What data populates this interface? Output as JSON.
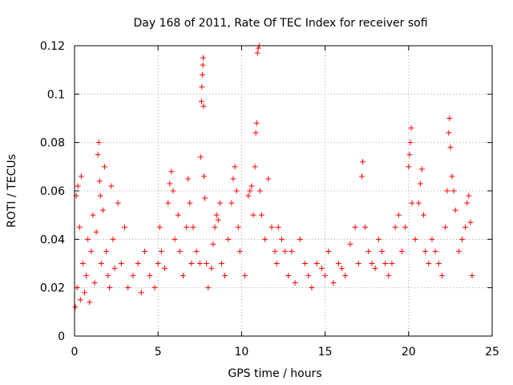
{
  "chart_data": {
    "type": "scatter",
    "title": "Day 168 of 2011, Rate Of TEC Index for receiver sofi",
    "xlabel": "GPS time / hours",
    "ylabel": "ROTI / TECUs",
    "xlim": [
      0,
      25
    ],
    "ylim": [
      0,
      0.12
    ],
    "xticks": [
      0,
      5,
      10,
      15,
      20,
      25
    ],
    "xtick_labels": [
      "0",
      "5",
      "10",
      "15",
      "20",
      "25"
    ],
    "yticks": [
      0,
      0.02,
      0.04,
      0.06,
      0.08,
      0.1,
      0.12
    ],
    "ytick_labels": [
      "0",
      "0.02",
      "0.04",
      "0.06",
      "0.08",
      "0.1",
      "0.12"
    ],
    "grid": true,
    "marker": "plus",
    "color": "#ff0000",
    "series": [
      {
        "name": "ROTI",
        "points": [
          [
            0.05,
            0.012
          ],
          [
            0.1,
            0.058
          ],
          [
            0.15,
            0.02
          ],
          [
            0.2,
            0.062
          ],
          [
            0.3,
            0.045
          ],
          [
            0.35,
            0.015
          ],
          [
            0.4,
            0.066
          ],
          [
            0.5,
            0.03
          ],
          [
            0.6,
            0.018
          ],
          [
            0.7,
            0.025
          ],
          [
            0.8,
            0.04
          ],
          [
            0.9,
            0.014
          ],
          [
            1.0,
            0.035
          ],
          [
            1.1,
            0.05
          ],
          [
            1.2,
            0.022
          ],
          [
            1.3,
            0.043
          ],
          [
            1.4,
            0.075
          ],
          [
            1.45,
            0.08
          ],
          [
            1.5,
            0.064
          ],
          [
            1.55,
            0.058
          ],
          [
            1.6,
            0.03
          ],
          [
            1.7,
            0.052
          ],
          [
            1.8,
            0.07
          ],
          [
            1.9,
            0.035
          ],
          [
            2.0,
            0.025
          ],
          [
            2.1,
            0.02
          ],
          [
            2.2,
            0.062
          ],
          [
            2.3,
            0.04
          ],
          [
            2.4,
            0.028
          ],
          [
            2.6,
            0.055
          ],
          [
            2.8,
            0.03
          ],
          [
            3.0,
            0.045
          ],
          [
            3.2,
            0.02
          ],
          [
            3.5,
            0.025
          ],
          [
            3.8,
            0.03
          ],
          [
            4.0,
            0.018
          ],
          [
            4.2,
            0.035
          ],
          [
            4.5,
            0.025
          ],
          [
            4.8,
            0.02
          ],
          [
            5.0,
            0.03
          ],
          [
            5.1,
            0.045
          ],
          [
            5.2,
            0.035
          ],
          [
            5.4,
            0.028
          ],
          [
            5.6,
            0.055
          ],
          [
            5.7,
            0.063
          ],
          [
            5.8,
            0.068
          ],
          [
            5.9,
            0.06
          ],
          [
            6.0,
            0.04
          ],
          [
            6.2,
            0.05
          ],
          [
            6.3,
            0.035
          ],
          [
            6.5,
            0.025
          ],
          [
            6.7,
            0.045
          ],
          [
            6.8,
            0.065
          ],
          [
            6.9,
            0.055
          ],
          [
            7.0,
            0.03
          ],
          [
            7.1,
            0.045
          ],
          [
            7.3,
            0.035
          ],
          [
            7.5,
            0.03
          ],
          [
            7.55,
            0.074
          ],
          [
            7.6,
            0.097
          ],
          [
            7.62,
            0.103
          ],
          [
            7.65,
            0.108
          ],
          [
            7.68,
            0.112
          ],
          [
            7.7,
            0.115
          ],
          [
            7.72,
            0.095
          ],
          [
            7.75,
            0.066
          ],
          [
            7.8,
            0.057
          ],
          [
            7.9,
            0.03
          ],
          [
            8.0,
            0.02
          ],
          [
            8.2,
            0.028
          ],
          [
            8.3,
            0.038
          ],
          [
            8.4,
            0.045
          ],
          [
            8.5,
            0.05
          ],
          [
            8.6,
            0.048
          ],
          [
            8.7,
            0.055
          ],
          [
            8.8,
            0.03
          ],
          [
            9.0,
            0.025
          ],
          [
            9.2,
            0.04
          ],
          [
            9.4,
            0.055
          ],
          [
            9.5,
            0.065
          ],
          [
            9.6,
            0.07
          ],
          [
            9.7,
            0.06
          ],
          [
            9.8,
            0.045
          ],
          [
            9.9,
            0.035
          ],
          [
            10.2,
            0.025
          ],
          [
            10.4,
            0.058
          ],
          [
            10.5,
            0.06
          ],
          [
            10.6,
            0.062
          ],
          [
            10.7,
            0.05
          ],
          [
            10.8,
            0.07
          ],
          [
            10.85,
            0.084
          ],
          [
            10.9,
            0.088
          ],
          [
            10.95,
            0.117
          ],
          [
            11.0,
            0.119
          ],
          [
            11.05,
            0.12
          ],
          [
            11.1,
            0.06
          ],
          [
            11.2,
            0.05
          ],
          [
            11.4,
            0.04
          ],
          [
            11.6,
            0.065
          ],
          [
            11.8,
            0.045
          ],
          [
            12.0,
            0.035
          ],
          [
            12.1,
            0.03
          ],
          [
            12.2,
            0.045
          ],
          [
            12.4,
            0.04
          ],
          [
            12.6,
            0.035
          ],
          [
            12.8,
            0.025
          ],
          [
            13.0,
            0.035
          ],
          [
            13.2,
            0.022
          ],
          [
            13.5,
            0.04
          ],
          [
            13.8,
            0.03
          ],
          [
            14.0,
            0.025
          ],
          [
            14.2,
            0.02
          ],
          [
            14.5,
            0.03
          ],
          [
            14.8,
            0.028
          ],
          [
            15.0,
            0.025
          ],
          [
            15.2,
            0.035
          ],
          [
            15.5,
            0.022
          ],
          [
            15.8,
            0.03
          ],
          [
            16.0,
            0.028
          ],
          [
            16.2,
            0.025
          ],
          [
            16.5,
            0.038
          ],
          [
            16.8,
            0.045
          ],
          [
            17.0,
            0.03
          ],
          [
            17.2,
            0.066
          ],
          [
            17.25,
            0.072
          ],
          [
            17.4,
            0.045
          ],
          [
            17.6,
            0.035
          ],
          [
            17.8,
            0.03
          ],
          [
            18.0,
            0.028
          ],
          [
            18.2,
            0.04
          ],
          [
            18.4,
            0.035
          ],
          [
            18.6,
            0.03
          ],
          [
            18.8,
            0.025
          ],
          [
            19.0,
            0.03
          ],
          [
            19.2,
            0.045
          ],
          [
            19.4,
            0.05
          ],
          [
            19.6,
            0.035
          ],
          [
            19.8,
            0.045
          ],
          [
            20.0,
            0.07
          ],
          [
            20.05,
            0.075
          ],
          [
            20.1,
            0.08
          ],
          [
            20.15,
            0.086
          ],
          [
            20.2,
            0.055
          ],
          [
            20.4,
            0.04
          ],
          [
            20.6,
            0.055
          ],
          [
            20.7,
            0.063
          ],
          [
            20.8,
            0.069
          ],
          [
            20.9,
            0.05
          ],
          [
            21.0,
            0.035
          ],
          [
            21.2,
            0.03
          ],
          [
            21.4,
            0.04
          ],
          [
            21.6,
            0.035
          ],
          [
            21.8,
            0.03
          ],
          [
            22.0,
            0.025
          ],
          [
            22.2,
            0.045
          ],
          [
            22.3,
            0.06
          ],
          [
            22.4,
            0.084
          ],
          [
            22.45,
            0.09
          ],
          [
            22.5,
            0.078
          ],
          [
            22.6,
            0.066
          ],
          [
            22.7,
            0.06
          ],
          [
            22.8,
            0.052
          ],
          [
            23.0,
            0.035
          ],
          [
            23.2,
            0.04
          ],
          [
            23.4,
            0.045
          ],
          [
            23.5,
            0.055
          ],
          [
            23.6,
            0.058
          ],
          [
            23.7,
            0.047
          ],
          [
            23.8,
            0.025
          ]
        ]
      }
    ]
  }
}
